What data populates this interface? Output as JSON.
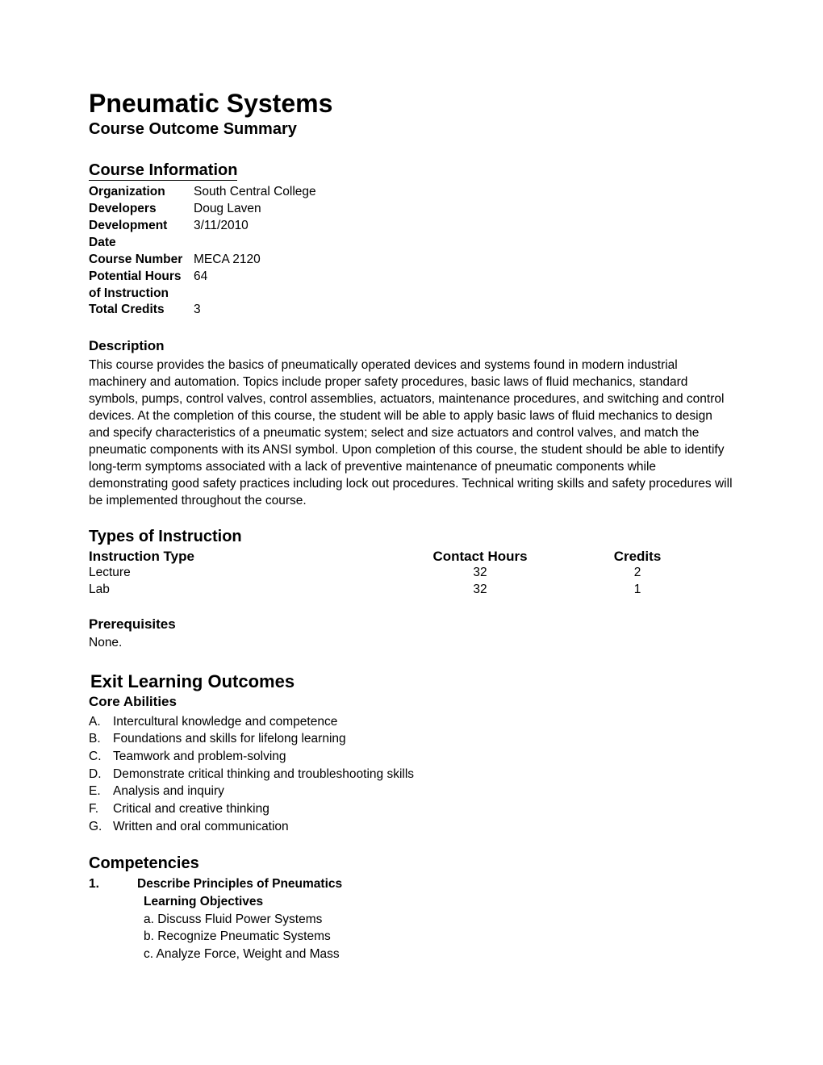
{
  "title": "Pneumatic Systems",
  "subtitle": "Course Outcome Summary",
  "sections": {
    "course_info_heading": "Course Information",
    "description_heading": "Description",
    "types_heading": "Types of Instruction",
    "prereq_heading": "Prerequisites",
    "outcomes_heading": "Exit Learning Outcomes",
    "abilities_heading": "Core Abilities",
    "competencies_heading": "Competencies"
  },
  "course_info": {
    "rows": [
      {
        "label": "Organization",
        "value": "South Central College"
      },
      {
        "label": "Developers",
        "value": "Doug Laven"
      },
      {
        "label": "Development Date",
        "value": "3/11/2010"
      },
      {
        "label": "Course Number",
        "value": "MECA 2120"
      },
      {
        "label": "Potential Hours of Instruction",
        "value": "64"
      },
      {
        "label": "Total Credits",
        "value": "3"
      }
    ]
  },
  "description": "This course provides the basics of pneumatically operated devices and systems found in modern industrial machinery and automation. Topics include proper safety procedures, basic laws of fluid mechanics, standard symbols, pumps, control valves, control assemblies, actuators, maintenance procedures, and switching and control devices. At the completion of this course, the student will be able to apply basic laws of fluid mechanics to design and specify characteristics of a pneumatic system; select and size actuators and control valves, and match the pneumatic components with its ANSI symbol. Upon completion of this course, the student should be able to identify long-term symptoms associated with a lack of preventive maintenance of pneumatic components while demonstrating good safety practices including lock out procedures. Technical writing skills and safety procedures will be implemented throughout the course.",
  "types_table": {
    "headers": {
      "type": "Instruction Type",
      "hours": "Contact Hours",
      "credits": "Credits"
    },
    "rows": [
      {
        "type": "Lecture",
        "hours": "32",
        "credits": "2"
      },
      {
        "type": "Lab",
        "hours": "32",
        "credits": "1"
      }
    ]
  },
  "prerequisites": "None.",
  "core_abilities": [
    {
      "letter": "A.",
      "text": "Intercultural knowledge and competence"
    },
    {
      "letter": "B.",
      "text": "Foundations and skills for lifelong learning"
    },
    {
      "letter": "C.",
      "text": "Teamwork and problem-solving"
    },
    {
      "letter": "D.",
      "text": "Demonstrate critical thinking and troubleshooting skills"
    },
    {
      "letter": "E.",
      "text": "Analysis and inquiry"
    },
    {
      "letter": "F.",
      "text": "Critical and creative thinking"
    },
    {
      "letter": "G.",
      "text": "Written and oral communication"
    }
  ],
  "competencies": [
    {
      "num": "1.",
      "title": "Describe Principles of Pneumatics",
      "sub_heading": "Learning Objectives",
      "objectives": [
        "a.  Discuss Fluid Power Systems",
        "b.  Recognize Pneumatic Systems",
        "c.  Analyze Force, Weight and Mass"
      ]
    }
  ]
}
